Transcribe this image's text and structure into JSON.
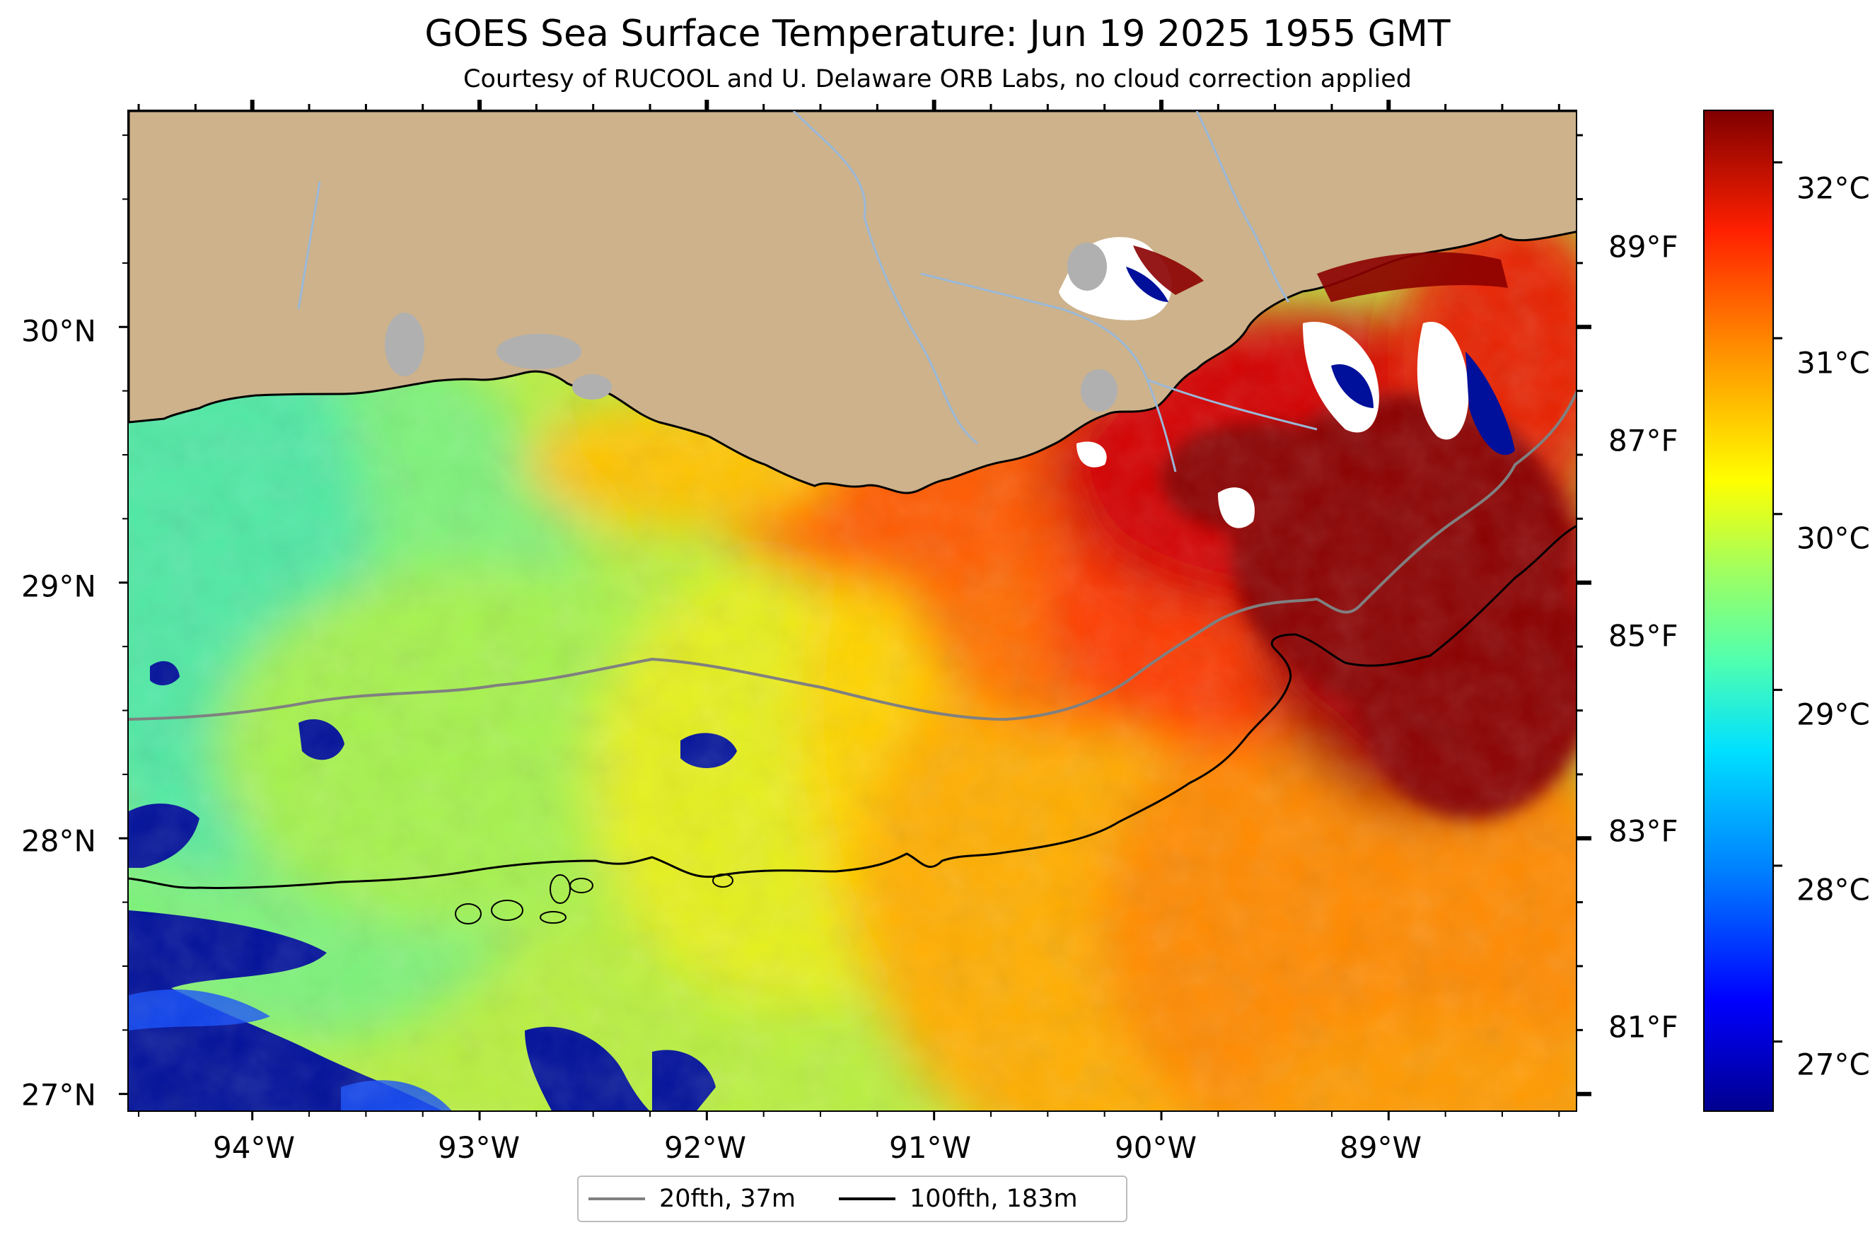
{
  "title": "GOES Sea Surface Temperature: Jun 19 2025 1955 GMT",
  "subtitle": "Courtesy of RUCOOL and U. Delaware ORB Labs, no cloud correction applied",
  "map": {
    "lon_range": [
      -94.55,
      -88.17
    ],
    "lat_range": [
      26.93,
      30.85
    ],
    "lon_ticks": [
      "94°W",
      "93°W",
      "92°W",
      "91°W",
      "90°W",
      "89°W"
    ],
    "lat_ticks": [
      "27°N",
      "28°N",
      "29°N",
      "30°N"
    ],
    "fahrenheit_ticks": [
      "81°F",
      "83°F",
      "85°F",
      "87°F",
      "89°F"
    ],
    "colors": {
      "land": "#cdb28b",
      "lakes": "#b0b0b0",
      "rivers": "#9ab8d8",
      "no_data": "#ffffff",
      "contour_20fth": "#808080",
      "contour_100fth": "#000000"
    }
  },
  "colorbar": {
    "colormap": "jet",
    "range_c": [
      26.6,
      32.3
    ],
    "ticks": [
      "27°C",
      "28°C",
      "29°C",
      "30°C",
      "31°C",
      "32°C"
    ]
  },
  "legend": {
    "items": [
      {
        "label": "20fth, 37m",
        "color": "#808080"
      },
      {
        "label": "100fth, 183m",
        "color": "#000000"
      }
    ]
  }
}
